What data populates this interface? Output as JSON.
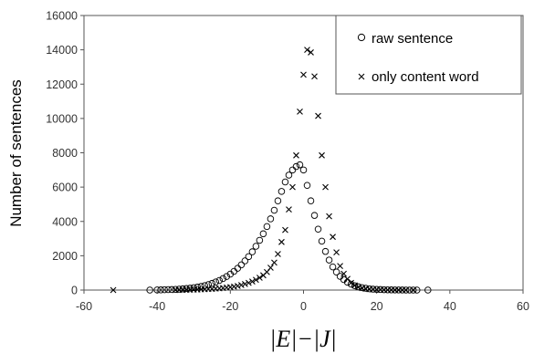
{
  "chart_data": {
    "type": "scatter",
    "title": "",
    "xlabel": "|E|−|J|",
    "ylabel": "Number of sentences",
    "xlim": [
      -60,
      60
    ],
    "ylim": [
      0,
      16000
    ],
    "xticks": [
      -60,
      -40,
      -20,
      0,
      20,
      40,
      60
    ],
    "yticks": [
      0,
      2000,
      4000,
      6000,
      8000,
      10000,
      12000,
      14000,
      16000
    ],
    "grid": false,
    "legend_position": "top-right",
    "series": [
      {
        "name": "raw sentence",
        "marker": "circle",
        "points": [
          [
            -42,
            0
          ],
          [
            -40,
            5
          ],
          [
            -39,
            10
          ],
          [
            -38,
            20
          ],
          [
            -37,
            25
          ],
          [
            -36,
            30
          ],
          [
            -35,
            40
          ],
          [
            -34,
            55
          ],
          [
            -33,
            70
          ],
          [
            -32,
            90
          ],
          [
            -31,
            110
          ],
          [
            -30,
            140
          ],
          [
            -29,
            170
          ],
          [
            -28,
            210
          ],
          [
            -27,
            260
          ],
          [
            -26,
            320
          ],
          [
            -25,
            390
          ],
          [
            -24,
            470
          ],
          [
            -23,
            560
          ],
          [
            -22,
            670
          ],
          [
            -21,
            790
          ],
          [
            -20,
            930
          ],
          [
            -19,
            1090
          ],
          [
            -18,
            1270
          ],
          [
            -17,
            1470
          ],
          [
            -16,
            1700
          ],
          [
            -15,
            1950
          ],
          [
            -14,
            2230
          ],
          [
            -13,
            2550
          ],
          [
            -12,
            2900
          ],
          [
            -11,
            3280
          ],
          [
            -10,
            3700
          ],
          [
            -9,
            4150
          ],
          [
            -8,
            4650
          ],
          [
            -7,
            5200
          ],
          [
            -6,
            5750
          ],
          [
            -5,
            6300
          ],
          [
            -4,
            6700
          ],
          [
            -3,
            7000
          ],
          [
            -2,
            7200
          ],
          [
            -1,
            7300
          ],
          [
            0,
            7000
          ],
          [
            1,
            6100
          ],
          [
            2,
            5200
          ],
          [
            3,
            4350
          ],
          [
            4,
            3550
          ],
          [
            5,
            2850
          ],
          [
            6,
            2250
          ],
          [
            7,
            1750
          ],
          [
            8,
            1350
          ],
          [
            9,
            1050
          ],
          [
            10,
            800
          ],
          [
            11,
            610
          ],
          [
            12,
            460
          ],
          [
            13,
            345
          ],
          [
            14,
            255
          ],
          [
            15,
            190
          ],
          [
            16,
            140
          ],
          [
            17,
            105
          ],
          [
            18,
            75
          ],
          [
            19,
            55
          ],
          [
            20,
            40
          ],
          [
            21,
            30
          ],
          [
            22,
            20
          ],
          [
            23,
            15
          ],
          [
            24,
            10
          ],
          [
            25,
            8
          ],
          [
            26,
            5
          ],
          [
            27,
            4
          ],
          [
            28,
            3
          ],
          [
            29,
            2
          ],
          [
            30,
            1
          ],
          [
            31,
            0
          ],
          [
            34,
            0
          ]
        ]
      },
      {
        "name": "only content word",
        "marker": "cross",
        "points": [
          [
            -52,
            0
          ],
          [
            -35,
            0
          ],
          [
            -34,
            5
          ],
          [
            -33,
            10
          ],
          [
            -32,
            15
          ],
          [
            -31,
            20
          ],
          [
            -30,
            25
          ],
          [
            -29,
            30
          ],
          [
            -28,
            40
          ],
          [
            -27,
            50
          ],
          [
            -26,
            60
          ],
          [
            -25,
            70
          ],
          [
            -24,
            85
          ],
          [
            -23,
            100
          ],
          [
            -22,
            120
          ],
          [
            -21,
            145
          ],
          [
            -20,
            170
          ],
          [
            -19,
            200
          ],
          [
            -18,
            240
          ],
          [
            -17,
            290
          ],
          [
            -16,
            350
          ],
          [
            -15,
            420
          ],
          [
            -14,
            500
          ],
          [
            -13,
            600
          ],
          [
            -12,
            720
          ],
          [
            -11,
            860
          ],
          [
            -10,
            1050
          ],
          [
            -9,
            1300
          ],
          [
            -8,
            1600
          ],
          [
            -7,
            2100
          ],
          [
            -6,
            2800
          ],
          [
            -5,
            3500
          ],
          [
            -4,
            4700
          ],
          [
            -3,
            6000
          ],
          [
            -2,
            7850
          ],
          [
            -1,
            10400
          ],
          [
            0,
            12550
          ],
          [
            1,
            14000
          ],
          [
            2,
            13850
          ],
          [
            3,
            12450
          ],
          [
            4,
            10150
          ],
          [
            5,
            7850
          ],
          [
            6,
            6000
          ],
          [
            7,
            4300
          ],
          [
            8,
            3100
          ],
          [
            9,
            2200
          ],
          [
            10,
            1400
          ],
          [
            11,
            950
          ],
          [
            12,
            650
          ],
          [
            13,
            420
          ],
          [
            14,
            270
          ],
          [
            15,
            175
          ],
          [
            16,
            115
          ],
          [
            17,
            75
          ],
          [
            18,
            50
          ],
          [
            19,
            35
          ],
          [
            20,
            25
          ],
          [
            21,
            18
          ],
          [
            22,
            12
          ],
          [
            23,
            8
          ],
          [
            24,
            6
          ],
          [
            25,
            4
          ],
          [
            26,
            3
          ],
          [
            27,
            2
          ],
          [
            28,
            1
          ],
          [
            30,
            0
          ]
        ]
      }
    ]
  }
}
